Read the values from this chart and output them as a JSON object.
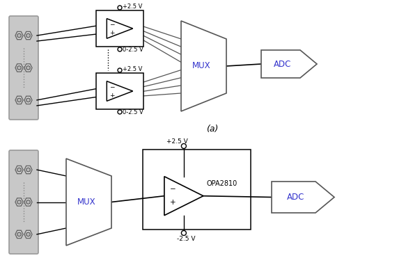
{
  "bg_color": "#ffffff",
  "line_color": "#000000",
  "gray_fill": "#c8c8c8",
  "gray_border": "#999999",
  "label_a": "(a)",
  "label_mux": "MUX",
  "label_adc": "ADC",
  "label_opa": "OPA2810",
  "label_plus2v5_top": "+2.5 V",
  "label_minus2v5_top": "0-2.5 V",
  "label_plus2v5_bot1": "+2.5 V",
  "label_minus2v5_bot1": "0-2.5 V",
  "label_plus2v5_b": "+2.5 V",
  "label_minus2v5_b": "-2.5 V",
  "fig_width": 5.93,
  "fig_height": 3.81,
  "dpi": 100
}
